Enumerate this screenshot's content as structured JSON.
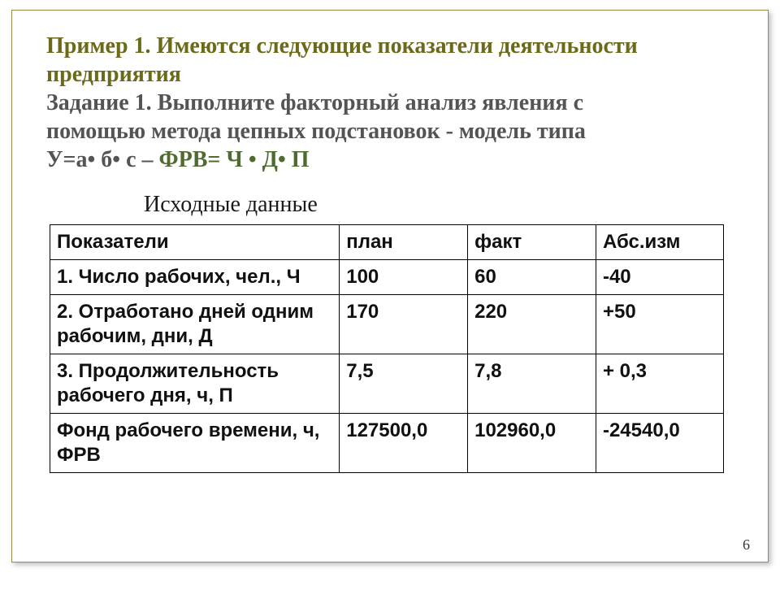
{
  "heading": {
    "title_line1a": "Пример 1. Имеются следующие   показатели деятельности",
    "title_line1b": "предприятия",
    "task_line1": "Задание 1. Выполните факторный анализ явления с",
    "task_line2": "помощью метода цепных подстановок - модель типа",
    "model_prefix": "У=а• б• с    –        ",
    "model_formula": "ФРВ= Ч • Д•  П"
  },
  "subheading": "Исходные данные",
  "table": {
    "columns": [
      "Показатели",
      "план",
      "факт",
      "Абс.изм"
    ],
    "rows": [
      [
        "1. Число рабочих, чел., Ч",
        "100",
        "60",
        "-40"
      ],
      [
        "2. Отработано дней одним рабочим, дни, Д",
        "170",
        "220",
        "+50"
      ],
      [
        "3.  Продолжительность рабочего дня, ч, П",
        "7,5",
        "7,8",
        "+ 0,3"
      ],
      [
        "Фонд рабочего времени, ч, ФРВ",
        "127500,0",
        "102960,0",
        "-24540,0"
      ]
    ]
  },
  "page_number": "6",
  "colors": {
    "title_olive": "#6a6a19",
    "task_gray": "#545454",
    "formula_green": "#4f6b2f",
    "border": "#9a8a46",
    "table_border": "#000000"
  }
}
